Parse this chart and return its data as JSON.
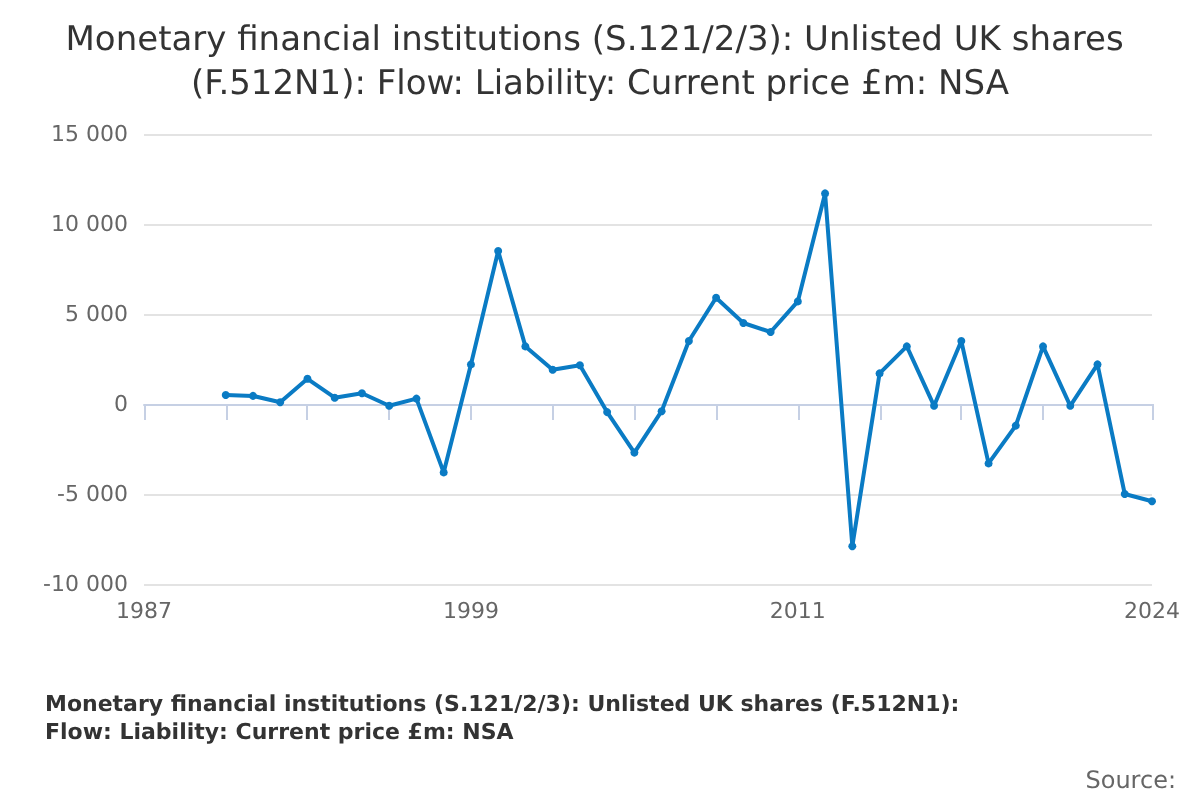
{
  "chart_data": {
    "type": "line",
    "title": "Monetary financial institutions (S.121/2/3): Unlisted UK shares (F.512N1): Flow: Liability: Current price £m: NSA",
    "x": [
      1990,
      1991,
      1992,
      1993,
      1994,
      1995,
      1996,
      1997,
      1998,
      1999,
      2000,
      2001,
      2002,
      2003,
      2004,
      2005,
      2006,
      2007,
      2008,
      2009,
      2010,
      2011,
      2012,
      2013,
      2014,
      2015,
      2016,
      2017,
      2018,
      2019,
      2020,
      2021,
      2022,
      2023,
      2024
    ],
    "series": [
      {
        "name": "Monetary financial institutions (S.121/2/3): Unlisted UK shares (F.512N1): Flow: Liability: Current price £m: NSA",
        "color": "#0a7bc4",
        "values": [
          500,
          450,
          100,
          1400,
          350,
          600,
          -100,
          300,
          -3800,
          2200,
          8500,
          3200,
          1900,
          2150,
          -450,
          -2700,
          -400,
          3500,
          5900,
          4500,
          4000,
          5700,
          11700,
          -7900,
          1700,
          3200,
          -100,
          3500,
          -3300,
          -1200,
          3200,
          -100,
          2200,
          -5000,
          -5400
        ]
      }
    ],
    "xlim": [
      1987,
      2024
    ],
    "xticks": [
      1987,
      {
        "value": 1990,
        "label": null
      },
      {
        "value": 1993,
        "label": null
      },
      {
        "value": 1996,
        "label": null
      },
      1999,
      {
        "value": 2002,
        "label": null
      },
      {
        "value": 2005,
        "label": null
      },
      {
        "value": 2008,
        "label": null
      },
      2011,
      {
        "value": 2014,
        "label": null
      },
      {
        "value": 2017,
        "label": null
      },
      {
        "value": 2020,
        "label": null
      },
      2024
    ],
    "ylim": [
      -10000,
      15000
    ],
    "yticks": [
      {
        "value": -10000,
        "label": "-10 000"
      },
      {
        "value": -5000,
        "label": "-5 000"
      },
      0,
      {
        "value": 5000,
        "label": "5 000"
      },
      {
        "value": 10000,
        "label": "10 000"
      },
      {
        "value": 15000,
        "label": "15 000"
      }
    ],
    "grid": "y",
    "legend": "bottom",
    "marker": "circle",
    "line_style": "solid",
    "annotations": [
      "Source:"
    ]
  }
}
